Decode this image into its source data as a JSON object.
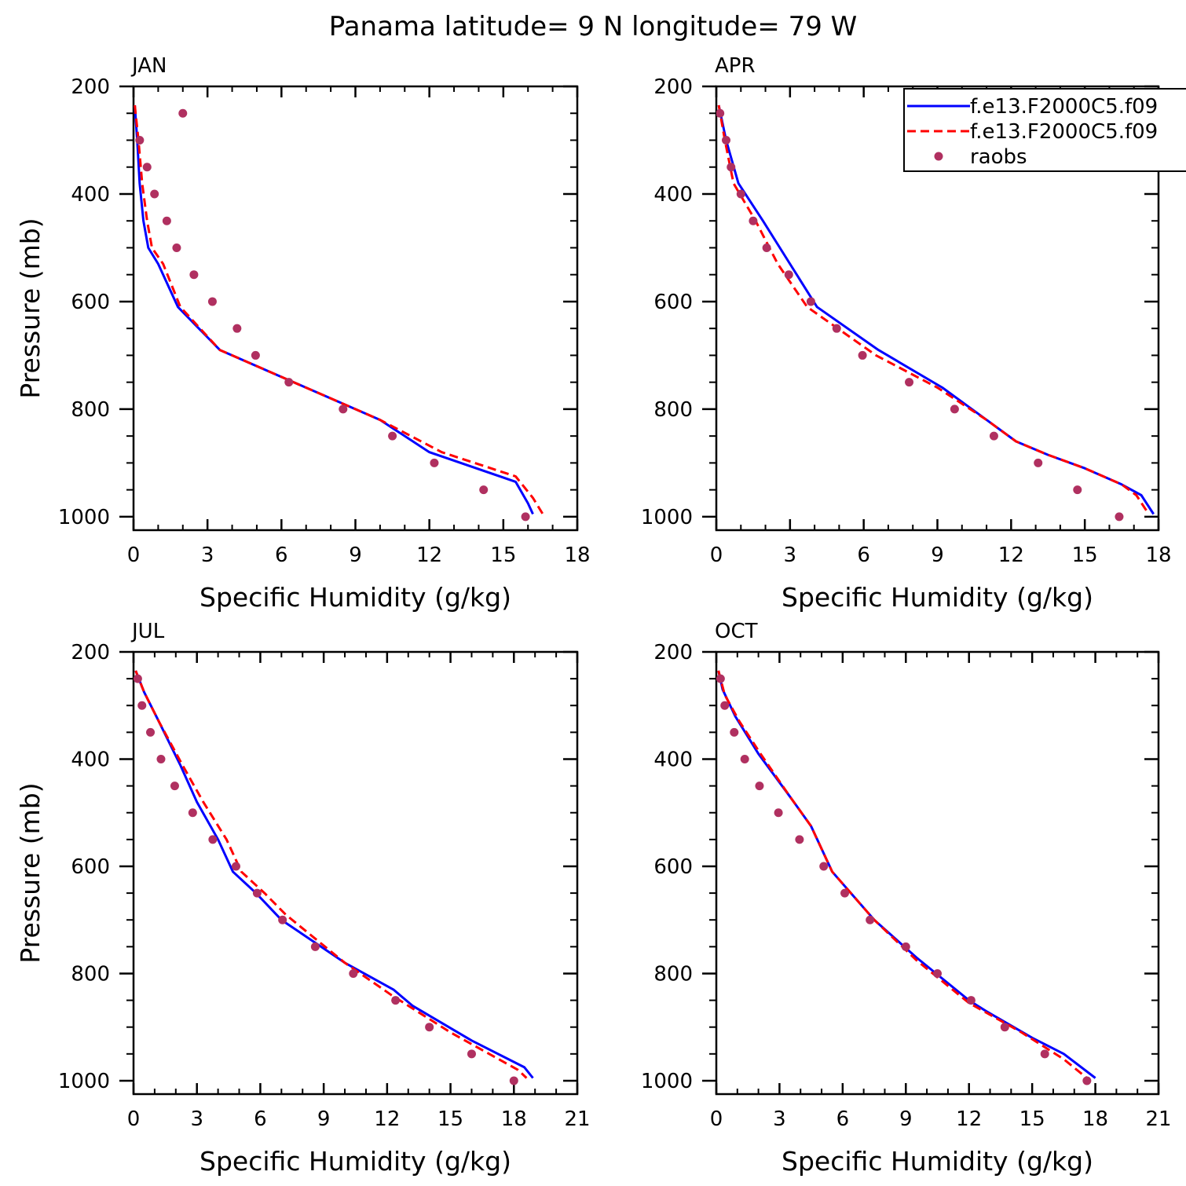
{
  "figure": {
    "title": "Panama  latitude= 9 N longitude= 79 W"
  },
  "legend": {
    "placement": "top-right of APR panel",
    "entries": [
      {
        "label": "f.e13.F2000C5.f09",
        "color": "#0000ff",
        "style": "solid"
      },
      {
        "label": "f.e13.F2000C5.f09",
        "color": "#ff0000",
        "style": "dashed"
      },
      {
        "label": "raobs",
        "color": "#b03060",
        "style": "dot"
      }
    ]
  },
  "chart_data": [
    {
      "type": "line",
      "panel": "JAN",
      "title": "JAN",
      "xlabel": "Specific Humidity (g/kg)",
      "ylabel": "Pressure (mb)",
      "xlim": [
        0,
        18
      ],
      "xticks": [
        0,
        3,
        6,
        9,
        12,
        15,
        18
      ],
      "ylim": [
        1025,
        200
      ],
      "yticks": [
        200,
        400,
        600,
        800,
        1000
      ],
      "series": [
        {
          "name": "f.e13.F2000C5.f09 (blue solid)",
          "points": [
            [
              0.05,
              235
            ],
            [
              0.15,
              300
            ],
            [
              0.25,
              380
            ],
            [
              0.4,
              450
            ],
            [
              0.6,
              500
            ],
            [
              1.0,
              530
            ],
            [
              1.8,
              610
            ],
            [
              3.5,
              690
            ],
            [
              6.5,
              750
            ],
            [
              10,
              820
            ],
            [
              12,
              880
            ],
            [
              15.5,
              935
            ],
            [
              16,
              975
            ],
            [
              16.2,
              995
            ]
          ]
        },
        {
          "name": "f.e13.F2000C5.f09 (red dashed)",
          "points": [
            [
              0.05,
              235
            ],
            [
              0.2,
              300
            ],
            [
              0.35,
              380
            ],
            [
              0.55,
              450
            ],
            [
              0.75,
              500
            ],
            [
              1.2,
              530
            ],
            [
              1.9,
              610
            ],
            [
              3.5,
              690
            ],
            [
              6.5,
              750
            ],
            [
              10,
              820
            ],
            [
              12.5,
              880
            ],
            [
              15.5,
              925
            ],
            [
              16.2,
              965
            ],
            [
              16.6,
              995
            ]
          ]
        },
        {
          "name": "raobs",
          "points": [
            [
              2.0,
              250
            ],
            [
              0.25,
              300
            ],
            [
              0.55,
              350
            ],
            [
              0.85,
              400
            ],
            [
              1.35,
              450
            ],
            [
              1.75,
              500
            ],
            [
              2.45,
              550
            ],
            [
              3.2,
              600
            ],
            [
              4.2,
              650
            ],
            [
              4.95,
              700
            ],
            [
              6.3,
              750
            ],
            [
              8.5,
              800
            ],
            [
              10.5,
              850
            ],
            [
              12.2,
              900
            ],
            [
              14.2,
              950
            ],
            [
              15.9,
              1000
            ]
          ]
        }
      ]
    },
    {
      "type": "line",
      "panel": "APR",
      "title": "APR",
      "xlabel": "Specific Humidity (g/kg)",
      "ylabel": "",
      "xlim": [
        0,
        18
      ],
      "xticks": [
        0,
        3,
        6,
        9,
        12,
        15,
        18
      ],
      "ylim": [
        1025,
        200
      ],
      "yticks": [
        200,
        400,
        600,
        800,
        1000
      ],
      "series": [
        {
          "name": "f.e13.F2000C5.f09 (blue solid)",
          "points": [
            [
              0.1,
              235
            ],
            [
              0.4,
              300
            ],
            [
              0.9,
              380
            ],
            [
              1.9,
              450
            ],
            [
              3,
              530
            ],
            [
              4.1,
              610
            ],
            [
              6.6,
              690
            ],
            [
              9.2,
              760
            ],
            [
              11,
              820
            ],
            [
              12.2,
              860
            ],
            [
              13.5,
              885
            ],
            [
              15,
              910
            ],
            [
              16.5,
              940
            ],
            [
              17.3,
              960
            ],
            [
              17.8,
              995
            ]
          ]
        },
        {
          "name": "f.e13.F2000C5.f09 (red dashed)",
          "points": [
            [
              0.1,
              235
            ],
            [
              0.35,
              300
            ],
            [
              0.7,
              380
            ],
            [
              1.6,
              450
            ],
            [
              2.5,
              530
            ],
            [
              3.7,
              610
            ],
            [
              6.5,
              700
            ],
            [
              9,
              760
            ],
            [
              11,
              820
            ],
            [
              12.2,
              860
            ],
            [
              13.5,
              885
            ],
            [
              15,
              910
            ],
            [
              16.5,
              940
            ],
            [
              17.1,
              960
            ],
            [
              17.6,
              995
            ]
          ]
        },
        {
          "name": "raobs",
          "points": [
            [
              0.15,
              250
            ],
            [
              0.4,
              300
            ],
            [
              0.6,
              350
            ],
            [
              1.0,
              400
            ],
            [
              1.5,
              450
            ],
            [
              2.05,
              500
            ],
            [
              2.95,
              550
            ],
            [
              3.85,
              600
            ],
            [
              4.9,
              650
            ],
            [
              5.95,
              700
            ],
            [
              7.85,
              750
            ],
            [
              9.7,
              800
            ],
            [
              11.3,
              850
            ],
            [
              13.1,
              900
            ],
            [
              14.7,
              950
            ],
            [
              16.4,
              1000
            ]
          ]
        }
      ]
    },
    {
      "type": "line",
      "panel": "JUL",
      "title": "JUL",
      "xlabel": "Specific Humidity (g/kg)",
      "ylabel": "Pressure (mb)",
      "xlim": [
        0,
        21
      ],
      "xticks": [
        0,
        3,
        6,
        9,
        12,
        15,
        18,
        21
      ],
      "ylim": [
        1025,
        200
      ],
      "yticks": [
        200,
        400,
        600,
        800,
        1000
      ],
      "series": [
        {
          "name": "f.e13.F2000C5.f09 (blue solid)",
          "points": [
            [
              0.1,
              235
            ],
            [
              0.5,
              275
            ],
            [
              1.2,
              330
            ],
            [
              2.2,
              410
            ],
            [
              3,
              480
            ],
            [
              4,
              550
            ],
            [
              4.7,
              610
            ],
            [
              5.8,
              650
            ],
            [
              7,
              700
            ],
            [
              10,
              780
            ],
            [
              12.3,
              830
            ],
            [
              13.2,
              860
            ],
            [
              16,
              925
            ],
            [
              18.5,
              975
            ],
            [
              18.9,
              995
            ]
          ]
        },
        {
          "name": "f.e13.F2000C5.f09 (red dashed)",
          "points": [
            [
              0.1,
              235
            ],
            [
              0.5,
              275
            ],
            [
              1.2,
              330
            ],
            [
              2.3,
              410
            ],
            [
              3.3,
              480
            ],
            [
              4.4,
              550
            ],
            [
              5.1,
              610
            ],
            [
              6.2,
              650
            ],
            [
              7.2,
              690
            ],
            [
              10,
              780
            ],
            [
              12.2,
              840
            ],
            [
              15,
              910
            ],
            [
              18.2,
              980
            ],
            [
              18.6,
              995
            ]
          ]
        },
        {
          "name": "raobs",
          "points": [
            [
              0.2,
              250
            ],
            [
              0.4,
              300
            ],
            [
              0.8,
              350
            ],
            [
              1.3,
              400
            ],
            [
              1.95,
              450
            ],
            [
              2.8,
              500
            ],
            [
              3.75,
              550
            ],
            [
              4.85,
              600
            ],
            [
              5.85,
              650
            ],
            [
              7.05,
              700
            ],
            [
              8.6,
              750
            ],
            [
              10.4,
              800
            ],
            [
              12.4,
              850
            ],
            [
              14,
              900
            ],
            [
              16,
              950
            ],
            [
              18,
              1000
            ]
          ]
        }
      ]
    },
    {
      "type": "line",
      "panel": "OCT",
      "title": "OCT",
      "xlabel": "Specific Humidity (g/kg)",
      "ylabel": "",
      "xlim": [
        0,
        21
      ],
      "xticks": [
        0,
        3,
        6,
        9,
        12,
        15,
        18,
        21
      ],
      "ylim": [
        1025,
        200
      ],
      "yticks": [
        200,
        400,
        600,
        800,
        1000
      ],
      "series": [
        {
          "name": "f.e13.F2000C5.f09 (blue solid)",
          "points": [
            [
              0.1,
              235
            ],
            [
              0.3,
              270
            ],
            [
              0.9,
              320
            ],
            [
              2,
              390
            ],
            [
              3.5,
              470
            ],
            [
              4.5,
              525
            ],
            [
              5.5,
              610
            ],
            [
              7.5,
              700
            ],
            [
              9.5,
              770
            ],
            [
              12,
              850
            ],
            [
              12.8,
              870
            ],
            [
              15,
              920
            ],
            [
              16.5,
              950
            ],
            [
              18,
              995
            ]
          ]
        },
        {
          "name": "f.e13.F2000C5.f09 (red dashed)",
          "points": [
            [
              0.1,
              235
            ],
            [
              0.4,
              280
            ],
            [
              1.1,
              330
            ],
            [
              2.1,
              390
            ],
            [
              3.5,
              470
            ],
            [
              4.5,
              525
            ],
            [
              5.5,
              610
            ],
            [
              7.5,
              700
            ],
            [
              9.5,
              775
            ],
            [
              12,
              855
            ],
            [
              14.5,
              910
            ],
            [
              16.5,
              960
            ],
            [
              17.6,
              995
            ]
          ]
        },
        {
          "name": "raobs",
          "points": [
            [
              0.2,
              250
            ],
            [
              0.4,
              300
            ],
            [
              0.85,
              350
            ],
            [
              1.35,
              400
            ],
            [
              2.05,
              450
            ],
            [
              2.95,
              500
            ],
            [
              3.95,
              550
            ],
            [
              5.1,
              600
            ],
            [
              6.1,
              650
            ],
            [
              7.3,
              700
            ],
            [
              9,
              750
            ],
            [
              10.5,
              800
            ],
            [
              12.1,
              850
            ],
            [
              13.7,
              900
            ],
            [
              15.6,
              950
            ],
            [
              17.6,
              1000
            ]
          ]
        }
      ]
    }
  ]
}
